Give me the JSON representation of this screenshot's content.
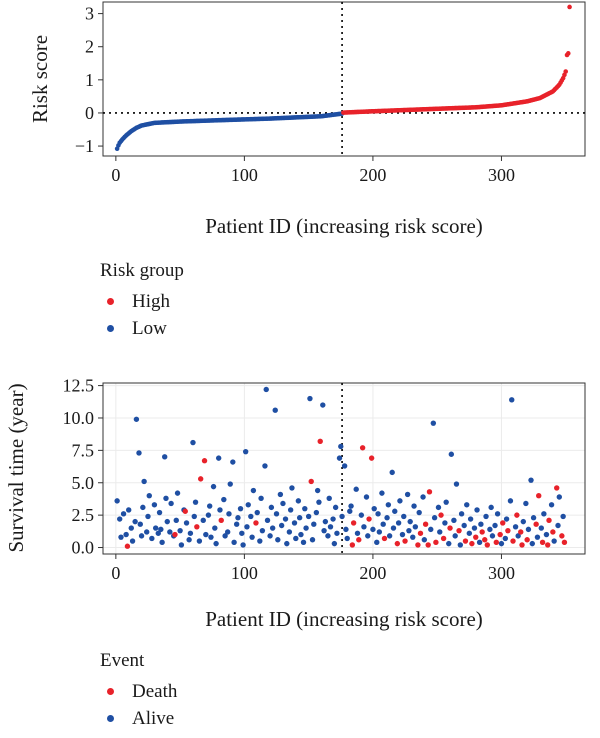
{
  "colors": {
    "high": "#e8222a",
    "low": "#1f4fa3",
    "axis": "#333333",
    "grid": "#ebebeb"
  },
  "chart_data": [
    {
      "type": "scatter",
      "name": "risk-score",
      "xlabel": "Patient ID (increasing risk score)",
      "ylabel": "Risk score",
      "xlim": [
        -10,
        365
      ],
      "ylim": [
        -1.3,
        3.35
      ],
      "xticks": [
        0,
        100,
        200,
        300
      ],
      "yticks": [
        -1,
        0,
        1,
        2,
        3
      ],
      "ytick_labels": [
        "−1",
        "0",
        "1",
        "2",
        "3"
      ],
      "cutoff_x": 176,
      "cutoff_y": 0,
      "grid": false,
      "n_patients": 353,
      "curve_keypoints": {
        "x": [
          1,
          2,
          3,
          5,
          8,
          12,
          16,
          20,
          30,
          50,
          80,
          120,
          160,
          176,
          177,
          200,
          240,
          280,
          300,
          320,
          330,
          340,
          345,
          348,
          350,
          351,
          352,
          353
        ],
        "y": [
          -1.08,
          -0.98,
          -0.9,
          -0.8,
          -0.68,
          -0.55,
          -0.45,
          -0.38,
          -0.3,
          -0.26,
          -0.22,
          -0.17,
          -0.1,
          -0.02,
          0.01,
          0.05,
          0.11,
          0.17,
          0.23,
          0.35,
          0.45,
          0.65,
          0.85,
          1.05,
          1.25,
          1.75,
          1.8,
          3.2
        ]
      },
      "series": [
        {
          "name": "High",
          "color": "#e8222a",
          "x_range": [
            177,
            353
          ]
        },
        {
          "name": "Low",
          "color": "#1f4fa3",
          "x_range": [
            1,
            176
          ]
        }
      ]
    },
    {
      "type": "scatter",
      "name": "survival-time",
      "xlabel": "Patient ID (increasing risk score)",
      "ylabel": "Survival time (year)",
      "xlim": [
        -10,
        365
      ],
      "ylim": [
        -0.5,
        12.7
      ],
      "xticks": [
        0,
        100,
        200,
        300
      ],
      "yticks": [
        0,
        2.5,
        5,
        7.5,
        10,
        12.5
      ],
      "ytick_labels": [
        "0.0",
        "2.5",
        "5.0",
        "7.5",
        "10.0",
        "12.5"
      ],
      "cutoff_x": 176,
      "grid": true,
      "points": [
        [
          1,
          3.6,
          0
        ],
        [
          3,
          2.2,
          0
        ],
        [
          4,
          0.8,
          0
        ],
        [
          6,
          2.6,
          0
        ],
        [
          8,
          1.0,
          0
        ],
        [
          9,
          0.1,
          1
        ],
        [
          10,
          2.9,
          0
        ],
        [
          12,
          1.5,
          0
        ],
        [
          13,
          0.5,
          0
        ],
        [
          15,
          2.0,
          0
        ],
        [
          16,
          9.9,
          0
        ],
        [
          18,
          7.3,
          0
        ],
        [
          19,
          1.8,
          0
        ],
        [
          20,
          0.9,
          0
        ],
        [
          21,
          3.1,
          0
        ],
        [
          22,
          5.1,
          0
        ],
        [
          24,
          1.2,
          0
        ],
        [
          25,
          2.4,
          0
        ],
        [
          26,
          4.0,
          0
        ],
        [
          28,
          0.7,
          0
        ],
        [
          30,
          3.3,
          0
        ],
        [
          31,
          1.5,
          0
        ],
        [
          33,
          1.1,
          0
        ],
        [
          34,
          2.7,
          0
        ],
        [
          35,
          1.4,
          0
        ],
        [
          36,
          0.4,
          0
        ],
        [
          38,
          7.0,
          0
        ],
        [
          39,
          3.8,
          0
        ],
        [
          40,
          2.0,
          0
        ],
        [
          42,
          1.2,
          0
        ],
        [
          43,
          3.4,
          0
        ],
        [
          45,
          0.9,
          0
        ],
        [
          46,
          1.0,
          1
        ],
        [
          47,
          2.1,
          0
        ],
        [
          48,
          4.2,
          0
        ],
        [
          50,
          1.3,
          0
        ],
        [
          51,
          0.2,
          0
        ],
        [
          53,
          2.9,
          0
        ],
        [
          54,
          2.8,
          1
        ],
        [
          55,
          1.9,
          0
        ],
        [
          57,
          0.6,
          0
        ],
        [
          58,
          1.1,
          0
        ],
        [
          60,
          8.1,
          0
        ],
        [
          61,
          2.4,
          0
        ],
        [
          62,
          3.5,
          0
        ],
        [
          63,
          1.6,
          1
        ],
        [
          65,
          0.5,
          0
        ],
        [
          66,
          5.3,
          1
        ],
        [
          68,
          2.1,
          0
        ],
        [
          69,
          6.7,
          1
        ],
        [
          70,
          1.0,
          0
        ],
        [
          72,
          2.5,
          0
        ],
        [
          73,
          3.2,
          0
        ],
        [
          74,
          0.8,
          0
        ],
        [
          76,
          4.7,
          0
        ],
        [
          77,
          1.5,
          0
        ],
        [
          78,
          0.3,
          0
        ],
        [
          80,
          6.9,
          0
        ],
        [
          81,
          2.9,
          0
        ],
        [
          82,
          2.1,
          1
        ],
        [
          84,
          3.7,
          0
        ],
        [
          85,
          0.9,
          0
        ],
        [
          87,
          1.2,
          0
        ],
        [
          88,
          2.6,
          0
        ],
        [
          89,
          4.9,
          0
        ],
        [
          91,
          6.6,
          0
        ],
        [
          92,
          0.4,
          0
        ],
        [
          94,
          1.8,
          0
        ],
        [
          95,
          2.3,
          0
        ],
        [
          97,
          3.0,
          0
        ],
        [
          98,
          1.1,
          0
        ],
        [
          99,
          0.2,
          0
        ],
        [
          101,
          7.4,
          0
        ],
        [
          102,
          1.6,
          0
        ],
        [
          103,
          3.3,
          0
        ],
        [
          105,
          2.4,
          0
        ],
        [
          106,
          0.8,
          0
        ],
        [
          107,
          4.4,
          0
        ],
        [
          109,
          1.9,
          1
        ],
        [
          110,
          2.7,
          0
        ],
        [
          112,
          0.5,
          0
        ],
        [
          113,
          3.8,
          0
        ],
        [
          114,
          1.3,
          0
        ],
        [
          116,
          6.3,
          0
        ],
        [
          117,
          12.2,
          0
        ],
        [
          118,
          2.1,
          0
        ],
        [
          120,
          0.9,
          0
        ],
        [
          121,
          3.1,
          0
        ],
        [
          122,
          1.5,
          0
        ],
        [
          124,
          10.6,
          0
        ],
        [
          125,
          2.6,
          0
        ],
        [
          126,
          0.6,
          0
        ],
        [
          128,
          4.1,
          0
        ],
        [
          129,
          1.7,
          0
        ],
        [
          130,
          3.4,
          0
        ],
        [
          132,
          2.2,
          0
        ],
        [
          133,
          0.3,
          0
        ],
        [
          135,
          1.2,
          0
        ],
        [
          136,
          2.9,
          0
        ],
        [
          137,
          4.6,
          0
        ],
        [
          139,
          1.9,
          0
        ],
        [
          140,
          0.7,
          0
        ],
        [
          142,
          3.6,
          0
        ],
        [
          143,
          2.3,
          0
        ],
        [
          144,
          1.0,
          0
        ],
        [
          146,
          0.4,
          0
        ],
        [
          147,
          3.0,
          0
        ],
        [
          148,
          1.5,
          0
        ],
        [
          150,
          2.4,
          0
        ],
        [
          151,
          11.5,
          0
        ],
        [
          152,
          5.1,
          1
        ],
        [
          153,
          0.6,
          0
        ],
        [
          154,
          1.8,
          0
        ],
        [
          156,
          2.7,
          0
        ],
        [
          157,
          4.4,
          0
        ],
        [
          158,
          3.5,
          0
        ],
        [
          159,
          8.2,
          1
        ],
        [
          161,
          11.0,
          0
        ],
        [
          162,
          1.3,
          0
        ],
        [
          163,
          2.0,
          0
        ],
        [
          165,
          0.9,
          0
        ],
        [
          166,
          3.8,
          0
        ],
        [
          167,
          1.6,
          0
        ],
        [
          169,
          2.2,
          0
        ],
        [
          170,
          0.3,
          0
        ],
        [
          171,
          3.1,
          0
        ],
        [
          172,
          1.1,
          0
        ],
        [
          174,
          6.9,
          0
        ],
        [
          175,
          7.8,
          0
        ],
        [
          176,
          2.4,
          0
        ],
        [
          178,
          6.3,
          0
        ],
        [
          179,
          1.4,
          0
        ],
        [
          180,
          0.7,
          0
        ],
        [
          182,
          2.8,
          0
        ],
        [
          183,
          3.2,
          0
        ],
        [
          184,
          0.2,
          1
        ],
        [
          185,
          1.9,
          1
        ],
        [
          187,
          4.5,
          0
        ],
        [
          188,
          1.1,
          0
        ],
        [
          189,
          0.6,
          1
        ],
        [
          191,
          2.5,
          0
        ],
        [
          192,
          7.7,
          1
        ],
        [
          193,
          1.6,
          0
        ],
        [
          195,
          3.9,
          0
        ],
        [
          196,
          0.9,
          0
        ],
        [
          197,
          2.2,
          1
        ],
        [
          199,
          6.9,
          1
        ],
        [
          200,
          1.4,
          0
        ],
        [
          201,
          3.0,
          0
        ],
        [
          203,
          0.4,
          0
        ],
        [
          204,
          2.6,
          0
        ],
        [
          205,
          1.2,
          0
        ],
        [
          207,
          4.2,
          0
        ],
        [
          208,
          1.8,
          0
        ],
        [
          209,
          0.7,
          1
        ],
        [
          211,
          2.3,
          0
        ],
        [
          212,
          3.3,
          0
        ],
        [
          213,
          0.9,
          0
        ],
        [
          215,
          5.8,
          0
        ],
        [
          216,
          1.5,
          0
        ],
        [
          217,
          2.8,
          0
        ],
        [
          219,
          0.3,
          1
        ],
        [
          220,
          1.9,
          0
        ],
        [
          221,
          3.6,
          0
        ],
        [
          223,
          1.0,
          0
        ],
        [
          224,
          2.4,
          0
        ],
        [
          225,
          0.5,
          1
        ],
        [
          227,
          4.1,
          0
        ],
        [
          228,
          1.3,
          0
        ],
        [
          229,
          2.0,
          0
        ],
        [
          231,
          0.8,
          0
        ],
        [
          232,
          3.2,
          0
        ],
        [
          233,
          1.6,
          0
        ],
        [
          235,
          0.2,
          1
        ],
        [
          236,
          2.7,
          0
        ],
        [
          237,
          1.1,
          1
        ],
        [
          239,
          3.9,
          0
        ],
        [
          240,
          0.6,
          0
        ],
        [
          241,
          1.8,
          1
        ],
        [
          243,
          0.2,
          1
        ],
        [
          244,
          4.3,
          1
        ],
        [
          245,
          1.4,
          0
        ],
        [
          247,
          9.6,
          0
        ],
        [
          248,
          2.3,
          0
        ],
        [
          249,
          0.4,
          1
        ],
        [
          251,
          3.1,
          0
        ],
        [
          252,
          1.2,
          0
        ],
        [
          253,
          2.5,
          1
        ],
        [
          255,
          0.7,
          1
        ],
        [
          256,
          1.9,
          0
        ],
        [
          257,
          3.5,
          0
        ],
        [
          259,
          0.3,
          0
        ],
        [
          260,
          1.5,
          1
        ],
        [
          261,
          7.2,
          0
        ],
        [
          263,
          2.1,
          0
        ],
        [
          264,
          0.9,
          0
        ],
        [
          265,
          4.9,
          0
        ],
        [
          267,
          1.3,
          1
        ],
        [
          268,
          0.2,
          0
        ],
        [
          269,
          2.6,
          0
        ],
        [
          271,
          1.7,
          0
        ],
        [
          272,
          0.5,
          1
        ],
        [
          273,
          3.3,
          0
        ],
        [
          275,
          1.1,
          0
        ],
        [
          276,
          2.2,
          0
        ],
        [
          277,
          0.3,
          1
        ],
        [
          279,
          1.5,
          0
        ],
        [
          280,
          0.8,
          1
        ],
        [
          281,
          2.9,
          0
        ],
        [
          283,
          0.4,
          0
        ],
        [
          284,
          1.8,
          0
        ],
        [
          285,
          1.2,
          1
        ],
        [
          287,
          0.6,
          1
        ],
        [
          288,
          2.4,
          0
        ],
        [
          289,
          0.2,
          1
        ],
        [
          291,
          1.4,
          0
        ],
        [
          292,
          3.1,
          0
        ],
        [
          293,
          0.9,
          0
        ],
        [
          295,
          1.7,
          0
        ],
        [
          296,
          0.4,
          1
        ],
        [
          297,
          2.6,
          0
        ],
        [
          299,
          1.0,
          1
        ],
        [
          300,
          0.3,
          0
        ],
        [
          301,
          1.9,
          1
        ],
        [
          303,
          0.7,
          0
        ],
        [
          304,
          2.2,
          0
        ],
        [
          305,
          1.3,
          1
        ],
        [
          307,
          3.6,
          0
        ],
        [
          308,
          11.4,
          0
        ],
        [
          309,
          0.5,
          1
        ],
        [
          311,
          1.6,
          0
        ],
        [
          312,
          2.5,
          1
        ],
        [
          313,
          0.9,
          0
        ],
        [
          315,
          1.2,
          1
        ],
        [
          316,
          0.2,
          1
        ],
        [
          317,
          2.0,
          0
        ],
        [
          319,
          3.4,
          0
        ],
        [
          320,
          0.6,
          1
        ],
        [
          321,
          1.4,
          0
        ],
        [
          323,
          5.2,
          0
        ],
        [
          324,
          0.3,
          0
        ],
        [
          325,
          2.3,
          0
        ],
        [
          327,
          1.8,
          1
        ],
        [
          328,
          0.8,
          0
        ],
        [
          329,
          4.0,
          1
        ],
        [
          331,
          1.5,
          0
        ],
        [
          332,
          0.4,
          1
        ],
        [
          333,
          2.6,
          0
        ],
        [
          335,
          1.0,
          0
        ],
        [
          336,
          0.2,
          1
        ],
        [
          337,
          2.1,
          1
        ],
        [
          339,
          3.3,
          0
        ],
        [
          340,
          1.2,
          1
        ],
        [
          341,
          0.5,
          0
        ],
        [
          343,
          4.6,
          1
        ],
        [
          344,
          1.7,
          0
        ],
        [
          345,
          3.9,
          0
        ],
        [
          347,
          0.9,
          1
        ],
        [
          348,
          2.4,
          0
        ],
        [
          349,
          0.4,
          1
        ]
      ],
      "series": [
        {
          "name": "Death",
          "color": "#e8222a"
        },
        {
          "name": "Alive",
          "color": "#1f4fa3"
        }
      ]
    }
  ],
  "legend_risk": {
    "title": "Risk group",
    "items": [
      "High",
      "Low"
    ]
  },
  "legend_event": {
    "title": "Event",
    "items": [
      "Death",
      "Alive"
    ]
  }
}
